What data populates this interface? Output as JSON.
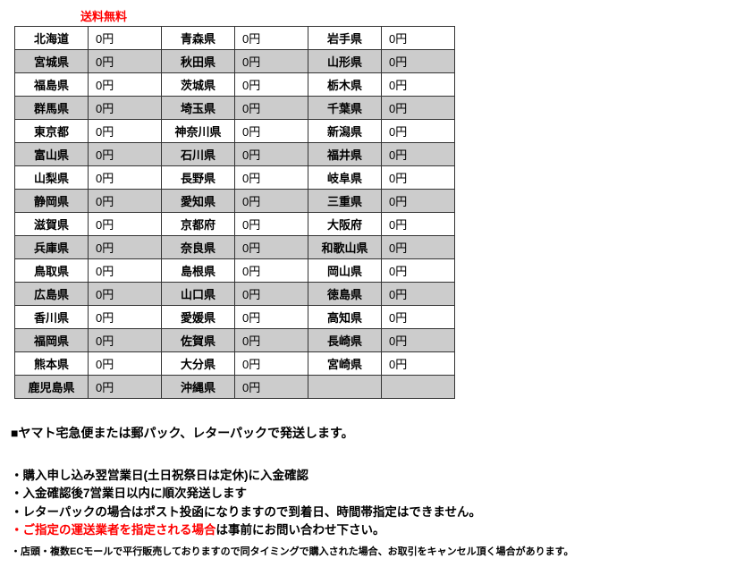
{
  "header": {
    "free_shipping": "送料無料"
  },
  "table": {
    "rows": [
      {
        "shaded": false,
        "cells": [
          "北海道",
          "0円",
          "青森県",
          "0円",
          "岩手県",
          "0円"
        ]
      },
      {
        "shaded": true,
        "cells": [
          "宮城県",
          "0円",
          "秋田県",
          "0円",
          "山形県",
          "0円"
        ]
      },
      {
        "shaded": false,
        "cells": [
          "福島県",
          "0円",
          "茨城県",
          "0円",
          "栃木県",
          "0円"
        ]
      },
      {
        "shaded": true,
        "cells": [
          "群馬県",
          "0円",
          "埼玉県",
          "0円",
          "千葉県",
          "0円"
        ]
      },
      {
        "shaded": false,
        "cells": [
          "東京都",
          "0円",
          "神奈川県",
          "0円",
          "新潟県",
          "0円"
        ]
      },
      {
        "shaded": true,
        "cells": [
          "富山県",
          "0円",
          "石川県",
          "0円",
          "福井県",
          "0円"
        ]
      },
      {
        "shaded": false,
        "cells": [
          "山梨県",
          "0円",
          "長野県",
          "0円",
          "岐阜県",
          "0円"
        ]
      },
      {
        "shaded": true,
        "cells": [
          "静岡県",
          "0円",
          "愛知県",
          "0円",
          "三重県",
          "0円"
        ]
      },
      {
        "shaded": false,
        "cells": [
          "滋賀県",
          "0円",
          "京都府",
          "0円",
          "大阪府",
          "0円"
        ]
      },
      {
        "shaded": true,
        "cells": [
          "兵庫県",
          "0円",
          "奈良県",
          "0円",
          "和歌山県",
          "0円"
        ]
      },
      {
        "shaded": false,
        "cells": [
          "鳥取県",
          "0円",
          "島根県",
          "0円",
          "岡山県",
          "0円"
        ]
      },
      {
        "shaded": true,
        "cells": [
          "広島県",
          "0円",
          "山口県",
          "0円",
          "徳島県",
          "0円"
        ]
      },
      {
        "shaded": false,
        "cells": [
          "香川県",
          "0円",
          "愛媛県",
          "0円",
          "高知県",
          "0円"
        ]
      },
      {
        "shaded": true,
        "cells": [
          "福岡県",
          "0円",
          "佐賀県",
          "0円",
          "長崎県",
          "0円"
        ]
      },
      {
        "shaded": false,
        "cells": [
          "熊本県",
          "0円",
          "大分県",
          "0円",
          "宮崎県",
          "0円"
        ]
      },
      {
        "shaded": true,
        "cells": [
          "鹿児島県",
          "0円",
          "沖縄県",
          "0円",
          "",
          ""
        ]
      }
    ]
  },
  "section": {
    "title": "■ヤマト宅急便または郵パック、レターパックで発送します。"
  },
  "bullets": {
    "b1": "・購入申し込み翌営業日(土日祝祭日は定休)に入金確認",
    "b2": "・入金確認後7営業日以内に順次発送します",
    "b3": "・レターパックの場合はポスト投函になりますので到着日、時間帯指定はできません。",
    "b4_red": "・ご指定の運送業者を指定される場合",
    "b4_rest": "は事前にお問い合わせ下さい。",
    "b5": "・店頭・複数ECモールで平行販売しておりますので同タイミングで購入された場合、お取引をキャンセル頂く場合があります。"
  }
}
